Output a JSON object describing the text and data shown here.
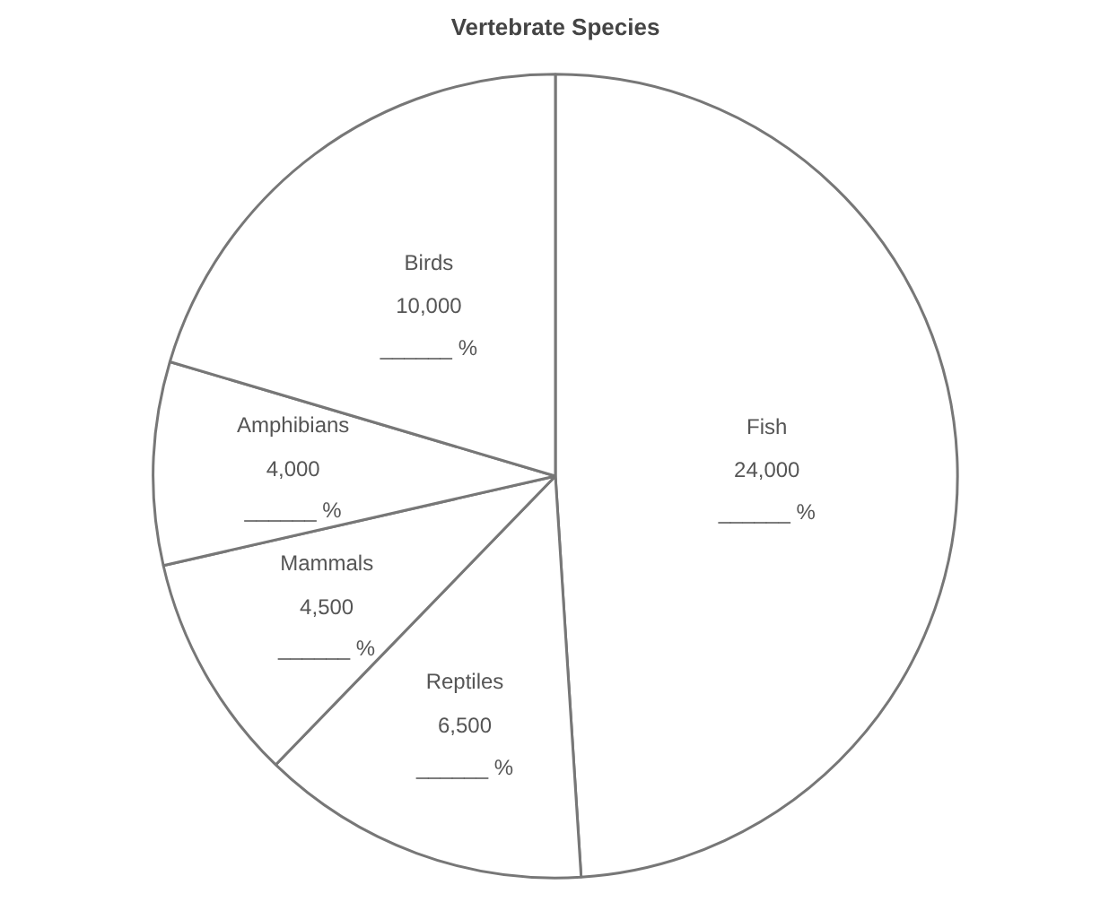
{
  "chart_data": {
    "type": "pie",
    "title": "Vertebrate Species",
    "categories": [
      "Fish",
      "Reptiles",
      "Mammals",
      "Amphibians",
      "Birds"
    ],
    "values": [
      24000,
      6500,
      4500,
      4000,
      10000
    ],
    "colors": [
      "#ffffff",
      "#ffffff",
      "#ffffff",
      "#ffffff",
      "#ffffff"
    ],
    "value_labels": [
      "24,000",
      "6,500",
      "4,500",
      "4,000",
      "10,000"
    ],
    "annotations": [
      {
        "text": "______ %",
        "x": "Fish"
      },
      {
        "text": "______ %",
        "x": "Reptiles"
      },
      {
        "text": "______ %",
        "x": "Mammals"
      },
      {
        "text": "______ %",
        "x": "Amphibians"
      },
      {
        "text": "______ %",
        "x": "Birds"
      }
    ]
  }
}
